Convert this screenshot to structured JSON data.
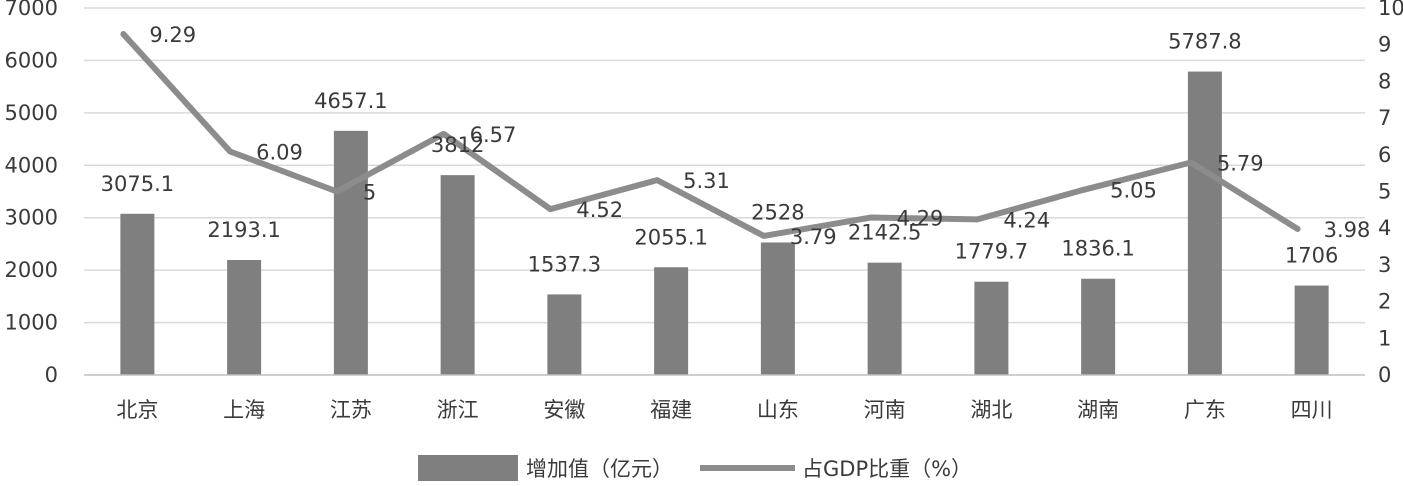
{
  "chart_data": {
    "type": "bar",
    "categories": [
      "北京",
      "上海",
      "江苏",
      "浙江",
      "安徽",
      "福建",
      "山东",
      "河南",
      "湖北",
      "湖南",
      "广东",
      "四川"
    ],
    "series": [
      {
        "name": "增加值（亿元）",
        "type": "bar",
        "axis": "left",
        "values": [
          3075.1,
          2193.1,
          4657.1,
          3812,
          1537.3,
          2055.1,
          2528,
          2142.5,
          1779.7,
          1836.1,
          5787.8,
          1706
        ],
        "labels": [
          "3075.1",
          "2193.1",
          "4657.1",
          "3812",
          "1537.3",
          "2055.1",
          "2528",
          "2142.5",
          "1779.7",
          "1836.1",
          "5787.8",
          "1706"
        ]
      },
      {
        "name": "占GDP比重（%）",
        "type": "line",
        "axis": "right",
        "values": [
          9.29,
          6.09,
          5,
          6.57,
          4.52,
          5.31,
          3.79,
          4.29,
          4.24,
          5.05,
          5.79,
          3.98
        ],
        "labels": [
          "9.29",
          "6.09",
          "5",
          "6.57",
          "4.52",
          "5.31",
          "3.79",
          "4.29",
          "4.24",
          "5.05",
          "5.79",
          "3.98"
        ]
      }
    ],
    "y_left": {
      "ylim": [
        0,
        7000
      ],
      "ticks": [
        "0",
        "1000",
        "2000",
        "3000",
        "4000",
        "5000",
        "6000",
        "7000"
      ]
    },
    "y_right": {
      "ylim": [
        0,
        10
      ],
      "ticks": [
        "0",
        "1",
        "2",
        "3",
        "4",
        "5",
        "6",
        "7",
        "8",
        "9",
        "10"
      ]
    },
    "grid": true,
    "legend_position": "bottom",
    "colors": {
      "bar": "#7f7f7f",
      "line": "#8c8c8c",
      "grid": "#d9d9d9",
      "axis": "#bfbfbf",
      "text": "#3a3a3a"
    }
  }
}
